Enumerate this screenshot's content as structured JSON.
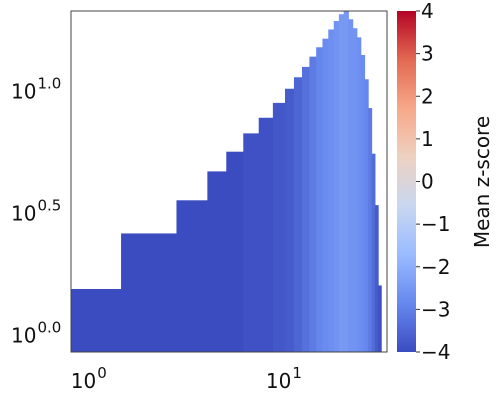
{
  "chart_data": {
    "type": "heatmap",
    "x_scale": "log",
    "y_scale": "log",
    "xlim": [
      0.72,
      30.0
    ],
    "ylim": [
      0.8,
      20.0
    ],
    "x_ticks": [
      {
        "value": 1,
        "base": "10",
        "exp": "0"
      },
      {
        "value": 10,
        "base": "10",
        "exp": "1"
      }
    ],
    "y_ticks": [
      {
        "value": 1,
        "base": "10",
        "exp": "0.0"
      },
      {
        "value": 3.1623,
        "base": "10",
        "exp": "0.5"
      },
      {
        "value": 10,
        "base": "10",
        "exp": "1.0"
      }
    ],
    "colorbar": {
      "label": "Mean z-score",
      "min": -4,
      "max": 4,
      "ticks": [
        "4",
        "3",
        "2",
        "1",
        "0",
        "−1",
        "−2",
        "−3",
        "−4"
      ],
      "colormap": "coolwarm",
      "colors": [
        "#3b4cc0",
        "#6788ee",
        "#9abbff",
        "#c9d7f0",
        "#edd1c2",
        "#f7a889",
        "#e26952",
        "#b40426"
      ]
    },
    "columns": [
      {
        "x0": 0.72,
        "x1": 1.3,
        "y_top": 1.45,
        "z": -4.0
      },
      {
        "x0": 1.3,
        "x1": 2.5,
        "y_top": 2.45,
        "z": -4.0
      },
      {
        "x0": 2.5,
        "x1": 3.6,
        "y_top": 3.35,
        "z": -4.0
      },
      {
        "x0": 3.6,
        "x1": 4.5,
        "y_top": 4.4,
        "z": -4.0
      },
      {
        "x0": 4.5,
        "x1": 5.5,
        "y_top": 5.3,
        "z": -4.0
      },
      {
        "x0": 5.5,
        "x1": 6.6,
        "y_top": 6.3,
        "z": -3.9
      },
      {
        "x0": 6.6,
        "x1": 7.8,
        "y_top": 7.3,
        "z": -3.9
      },
      {
        "x0": 7.8,
        "x1": 9.0,
        "y_top": 8.4,
        "z": -3.8
      },
      {
        "x0": 9.0,
        "x1": 10.0,
        "y_top": 9.6,
        "z": -3.7
      },
      {
        "x0": 10.0,
        "x1": 11.0,
        "y_top": 10.7,
        "z": -3.5
      },
      {
        "x0": 11.0,
        "x1": 12.0,
        "y_top": 11.8,
        "z": -3.3
      },
      {
        "x0": 12.0,
        "x1": 13.0,
        "y_top": 13.0,
        "z": -3.1
      },
      {
        "x0": 13.0,
        "x1": 14.0,
        "y_top": 14.2,
        "z": -2.9
      },
      {
        "x0": 14.0,
        "x1": 15.0,
        "y_top": 15.4,
        "z": -2.8
      },
      {
        "x0": 15.0,
        "x1": 16.0,
        "y_top": 16.8,
        "z": -2.7
      },
      {
        "x0": 16.0,
        "x1": 17.0,
        "y_top": 18.2,
        "z": -2.6
      },
      {
        "x0": 17.0,
        "x1": 18.0,
        "y_top": 19.4,
        "z": -2.5
      },
      {
        "x0": 18.0,
        "x1": 19.0,
        "y_top": 20.0,
        "z": -2.5
      },
      {
        "x0": 19.0,
        "x1": 20.0,
        "y_top": 18.5,
        "z": -2.6
      },
      {
        "x0": 20.0,
        "x1": 21.0,
        "y_top": 17.0,
        "z": -2.6
      },
      {
        "x0": 21.0,
        "x1": 22.0,
        "y_top": 15.6,
        "z": -2.7
      },
      {
        "x0": 22.0,
        "x1": 23.0,
        "y_top": 13.2,
        "z": -2.8
      },
      {
        "x0": 23.0,
        "x1": 24.0,
        "y_top": 10.5,
        "z": -2.9
      },
      {
        "x0": 24.0,
        "x1": 25.0,
        "y_top": 8.0,
        "z": -3.1
      },
      {
        "x0": 25.0,
        "x1": 26.0,
        "y_top": 5.2,
        "z": -3.4
      },
      {
        "x0": 26.0,
        "x1": 27.0,
        "y_top": 3.2,
        "z": -3.7
      },
      {
        "x0": 27.0,
        "x1": 28.0,
        "y_top": 1.5,
        "z": -3.9
      }
    ]
  }
}
